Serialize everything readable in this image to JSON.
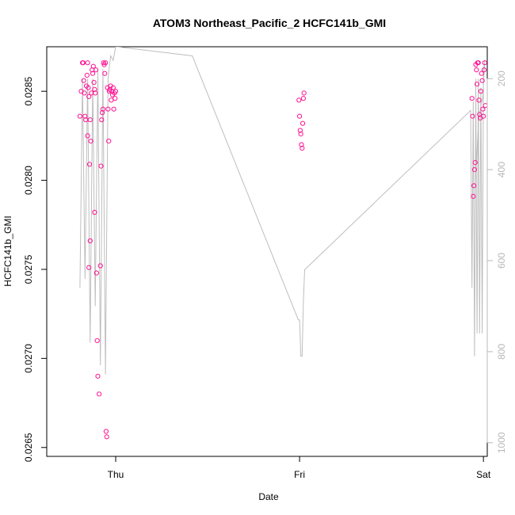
{
  "chart_data": {
    "type": "scatter",
    "title": "ATOM3 Northeast_Pacific_2 HCFC141b_GMI",
    "xlabel": "Date",
    "ylabel": "HCFC141b_GMI",
    "x_ticks": [
      "Thu",
      "Fri",
      "Sat"
    ],
    "y_ticks": [
      "0.0265",
      "0.0270",
      "0.0275",
      "0.0280",
      "0.0285"
    ],
    "y_ticks_values": [
      0.0265,
      0.027,
      0.0275,
      0.028,
      0.0285
    ],
    "y2_ticks": [
      "200",
      "400",
      "600",
      "800",
      "1000"
    ],
    "y2_ticks_values": [
      200,
      400,
      600,
      800,
      1000
    ],
    "xlim": [
      "2017-10-04T15:00",
      "2017-10-07T00:30"
    ],
    "ylim": [
      0.02645,
      0.02875
    ],
    "y2lim": [
      1030,
      130
    ],
    "y2_reversed": true,
    "colors": {
      "points": "#ff1493",
      "line": "#bebebe"
    },
    "series": [
      {
        "kind": "points",
        "x": [
          "2017-10-04T19:20",
          "2017-10-04T19:30",
          "2017-10-04T19:40",
          "2017-10-04T19:45",
          "2017-10-04T19:50",
          "2017-10-04T19:55",
          "2017-10-04T20:00",
          "2017-10-04T20:05",
          "2017-10-04T20:10",
          "2017-10-04T20:15",
          "2017-10-04T20:20",
          "2017-10-04T20:20",
          "2017-10-04T20:25",
          "2017-10-04T20:30",
          "2017-10-04T20:30",
          "2017-10-04T20:35",
          "2017-10-04T20:40",
          "2017-10-04T20:40",
          "2017-10-04T20:45",
          "2017-10-04T20:50",
          "2017-10-04T20:55",
          "2017-10-04T21:00",
          "2017-10-04T21:05",
          "2017-10-04T21:10",
          "2017-10-04T21:15",
          "2017-10-04T21:15",
          "2017-10-04T21:20",
          "2017-10-04T21:25",
          "2017-10-04T21:30",
          "2017-10-04T21:35",
          "2017-10-04T21:40",
          "2017-10-04T21:50",
          "2017-10-04T22:00",
          "2017-10-04T22:05",
          "2017-10-04T22:10",
          "2017-10-04T22:15",
          "2017-10-04T22:20",
          "2017-10-04T22:25",
          "2017-10-04T22:30",
          "2017-10-04T22:35",
          "2017-10-04T22:40",
          "2017-10-04T22:45",
          "2017-10-04T22:50",
          "2017-10-04T22:55",
          "2017-10-04T23:00",
          "2017-10-04T23:05",
          "2017-10-04T23:10",
          "2017-10-04T23:15",
          "2017-10-04T23:20",
          "2017-10-04T23:25",
          "2017-10-04T23:30",
          "2017-10-04T23:35",
          "2017-10-04T23:40",
          "2017-10-04T23:45",
          "2017-10-04T23:50",
          "2017-10-04T23:55",
          "2017-10-05T00:00",
          "2017-10-05T23:55",
          "2017-10-06T00:00",
          "2017-10-06T00:05",
          "2017-10-06T00:10",
          "2017-10-06T00:15",
          "2017-10-06T00:20",
          "2017-10-06T00:25",
          "2017-10-06T00:30",
          "2017-10-06T00:35",
          "2017-10-06T22:30",
          "2017-10-06T22:35",
          "2017-10-06T22:40",
          "2017-10-06T22:45",
          "2017-10-06T22:50",
          "2017-10-06T22:55",
          "2017-10-06T23:00",
          "2017-10-06T23:05",
          "2017-10-06T23:10",
          "2017-10-06T23:15",
          "2017-10-06T23:20",
          "2017-10-06T23:25",
          "2017-10-06T23:30",
          "2017-10-06T23:35",
          "2017-10-06T23:40",
          "2017-10-06T23:45",
          "2017-10-06T23:50",
          "2017-10-06T23:55",
          "2017-10-07T00:00",
          "2017-10-07T00:05",
          "2017-10-07T00:10",
          "2017-10-07T00:15"
        ],
        "y": [
          0.02836,
          0.0285,
          0.02866,
          0.02866,
          0.02856,
          0.02849,
          0.02836,
          0.02834,
          0.02853,
          0.02859,
          0.02866,
          0.02825,
          0.02852,
          0.02751,
          0.02847,
          0.02809,
          0.02834,
          0.02766,
          0.02822,
          0.02849,
          0.02862,
          0.0286,
          0.02864,
          0.02855,
          0.02851,
          0.02782,
          0.02849,
          0.02862,
          0.02748,
          0.0271,
          0.0269,
          0.0268,
          0.02752,
          0.02808,
          0.02834,
          0.02838,
          0.0284,
          0.02866,
          0.02865,
          0.0286,
          0.02866,
          0.02659,
          0.02656,
          0.02852,
          0.0284,
          0.02822,
          0.0285,
          0.02851,
          0.02853,
          0.02845,
          0.0285,
          0.02848,
          0.02852,
          0.0284,
          0.02849,
          0.02846,
          0.0285,
          0.02845,
          0.02836,
          0.02828,
          0.02826,
          0.0282,
          0.02818,
          0.02832,
          0.02846,
          0.02849,
          0.02846,
          0.02836,
          0.02791,
          0.02797,
          0.02806,
          0.0281,
          0.02865,
          0.02862,
          0.02854,
          0.02866,
          0.02866,
          0.02845,
          0.02837,
          0.02835,
          0.0285,
          0.0286,
          0.02856,
          0.0284,
          0.02836,
          0.02862,
          0.02866,
          0.02842
        ]
      },
      {
        "kind": "line",
        "x": [
          "2017-10-04T19:20",
          "2017-10-04T19:40",
          "2017-10-04T20:00",
          "2017-10-04T20:20",
          "2017-10-04T20:40",
          "2017-10-04T21:00",
          "2017-10-04T21:20",
          "2017-10-04T21:40",
          "2017-10-04T22:00",
          "2017-10-04T22:20",
          "2017-10-04T22:40",
          "2017-10-04T23:00",
          "2017-10-04T23:20",
          "2017-10-04T23:40",
          "2017-10-05T00:00",
          "2017-10-05T00:10",
          "2017-10-05T10:00",
          "2017-10-05T23:50",
          "2017-10-06T00:00",
          "2017-10-06T00:10",
          "2017-10-06T00:20",
          "2017-10-06T00:30",
          "2017-10-06T00:40",
          "2017-10-06T22:20",
          "2017-10-06T22:30",
          "2017-10-06T22:40",
          "2017-10-06T22:50",
          "2017-10-06T23:00",
          "2017-10-06T23:10",
          "2017-10-06T23:20",
          "2017-10-06T23:30",
          "2017-10-06T23:40",
          "2017-10-06T23:50",
          "2017-10-07T00:00",
          "2017-10-07T00:10",
          "2017-10-06T23:55",
          "2017-10-06T23:40",
          "2017-10-06T23:20",
          "2017-10-06T23:10",
          "2017-10-06T23:00"
        ],
        "y": [
          660,
          200,
          640,
          200,
          780,
          200,
          700,
          180,
          830,
          180,
          850,
          200,
          150,
          160,
          130,
          130,
          150,
          730,
          730,
          810,
          810,
          690,
          620,
          270,
          660,
          250,
          810,
          200,
          760,
          200,
          760,
          220,
          760,
          180,
          160,
          240,
          260,
          300,
          360,
          420
        ]
      }
    ]
  }
}
